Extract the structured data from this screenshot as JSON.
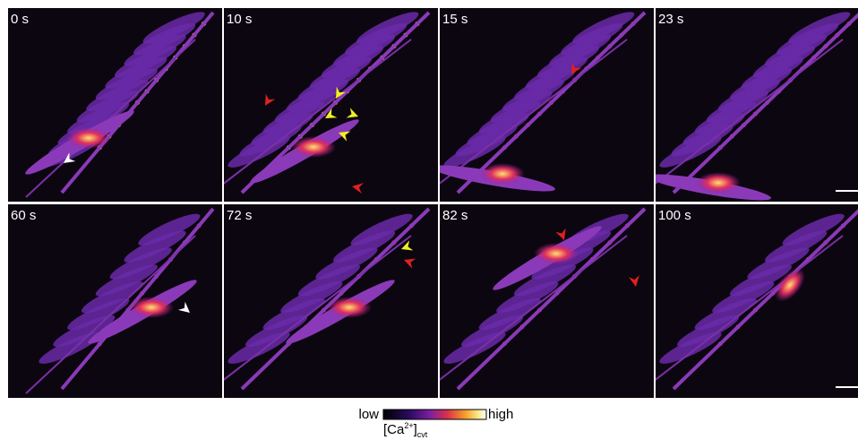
{
  "panels": [
    {
      "label": "0 s"
    },
    {
      "label": "10 s"
    },
    {
      "label": "15 s"
    },
    {
      "label": "23 s"
    },
    {
      "label": "60 s"
    },
    {
      "label": "72 s"
    },
    {
      "label": "82 s"
    },
    {
      "label": "100 s"
    }
  ],
  "colorbar": {
    "low": "low",
    "high": "high",
    "label_open": "[Ca",
    "label_sup": "2+",
    "label_close": "]",
    "label_sub": "cvt"
  }
}
